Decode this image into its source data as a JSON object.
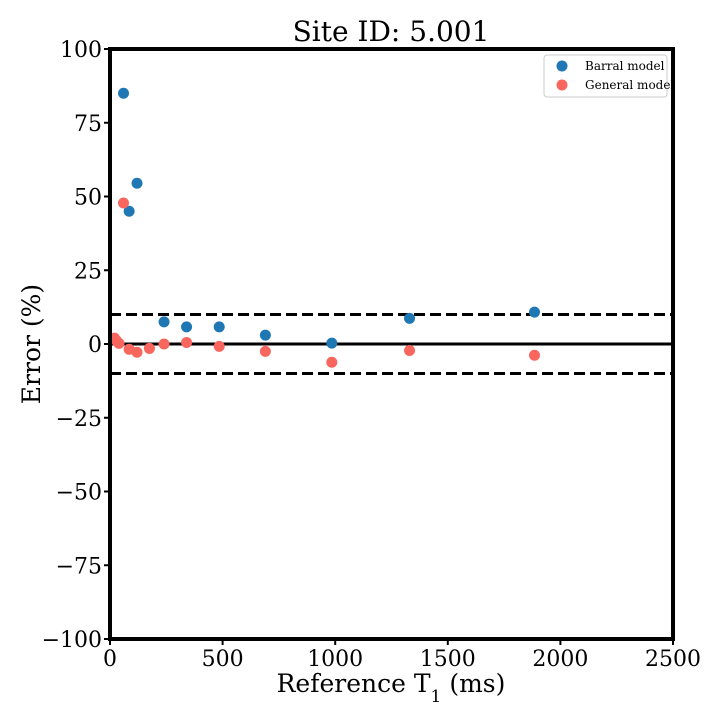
{
  "chart_data": {
    "type": "scatter",
    "title": "Site ID: 5.001",
    "xlabel": "Reference T",
    "xlabel_subscript": "1",
    "xlabel_unit": " (ms)",
    "ylabel": "Error (%)",
    "xlim": [
      0,
      2500
    ],
    "ylim": [
      -100,
      100
    ],
    "xticks": [
      0,
      500,
      1000,
      1500,
      2000,
      2500
    ],
    "yticks": [
      -100,
      -75,
      -50,
      -25,
      0,
      25,
      50,
      75,
      100
    ],
    "xtick_labels": [
      "0",
      "500",
      "1000",
      "1500",
      "2000",
      "2500"
    ],
    "ytick_labels": [
      "−100",
      "−75",
      "−50",
      "−25",
      "0",
      "25",
      "50",
      "75",
      "100"
    ],
    "grid": false,
    "legend_position": "top-right",
    "reference_lines": [
      {
        "y": 10,
        "style": "dashed",
        "color": "#000000"
      },
      {
        "y": 0,
        "style": "solid",
        "color": "#000000"
      },
      {
        "y": -10,
        "style": "dashed",
        "color": "#000000"
      }
    ],
    "series": [
      {
        "name": "Barral model",
        "color": "#1f77b4",
        "points": [
          {
            "x": 60,
            "y": 85
          },
          {
            "x": 85,
            "y": 45
          },
          {
            "x": 120,
            "y": 54.5
          },
          {
            "x": 240,
            "y": 7.5
          },
          {
            "x": 340,
            "y": 5.8
          },
          {
            "x": 485,
            "y": 5.8
          },
          {
            "x": 690,
            "y": 3
          },
          {
            "x": 985,
            "y": 0.3
          },
          {
            "x": 1330,
            "y": 8.7
          },
          {
            "x": 1885,
            "y": 10.8
          }
        ]
      },
      {
        "name": "General model",
        "color": "#f8665e",
        "points": [
          {
            "x": 20,
            "y": 2
          },
          {
            "x": 30,
            "y": 1
          },
          {
            "x": 40,
            "y": 0.2
          },
          {
            "x": 60,
            "y": 47.8
          },
          {
            "x": 85,
            "y": -1.8
          },
          {
            "x": 120,
            "y": -2.8
          },
          {
            "x": 175,
            "y": -1.5
          },
          {
            "x": 240,
            "y": 0
          },
          {
            "x": 340,
            "y": 0.5
          },
          {
            "x": 485,
            "y": -0.8
          },
          {
            "x": 690,
            "y": -2.5
          },
          {
            "x": 985,
            "y": -6.2
          },
          {
            "x": 1330,
            "y": -2.2
          },
          {
            "x": 1885,
            "y": -3.8
          }
        ]
      }
    ]
  }
}
